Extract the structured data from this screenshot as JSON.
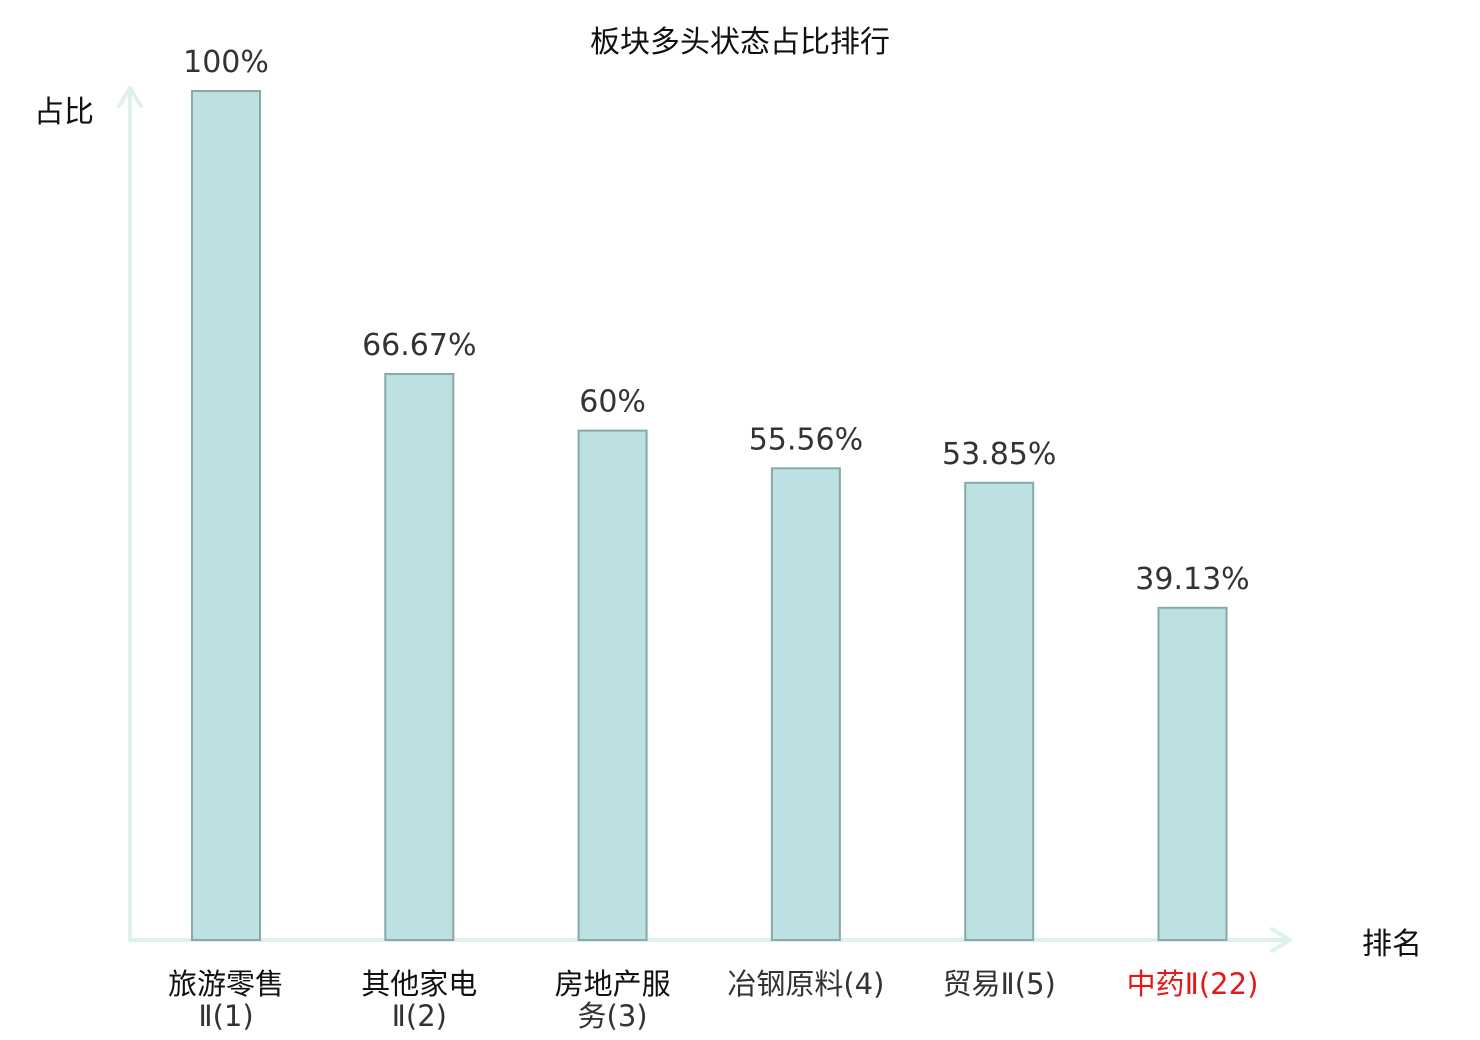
{
  "chart_data": {
    "type": "bar",
    "title": "板块多头状态占比排行",
    "ylabel": "占比",
    "xlabel": "排名",
    "ylim": [
      0,
      100
    ],
    "grid": false,
    "legend": "none",
    "categories": [
      {
        "name_lines": [
          "旅游零售"
        ],
        "rank_line": "Ⅱ(1)",
        "highlight": false
      },
      {
        "name_lines": [
          "其他家电"
        ],
        "rank_line": "Ⅱ(2)",
        "highlight": false
      },
      {
        "name_lines": [
          "房地产服"
        ],
        "rank_line": "务(3)",
        "highlight": false
      },
      {
        "name_lines": [],
        "rank_line": "冶钢原料(4)",
        "highlight": false
      },
      {
        "name_lines": [],
        "rank_line": "贸易Ⅱ(5)",
        "highlight": false
      },
      {
        "name_lines": [],
        "rank_line": "中药Ⅱ(22)",
        "highlight": true
      }
    ],
    "values": [
      100,
      66.67,
      60,
      55.56,
      53.85,
      39.13
    ],
    "value_labels": [
      "100%",
      "66.67%",
      "60%",
      "55.56%",
      "53.85%",
      "39.13%"
    ],
    "colors": {
      "bar_fill": "#bde0e3",
      "bar_stroke": "#86a9ab",
      "axis": "#dff1ef",
      "highlight_text": "#e01a1a",
      "value_text": "#333333"
    }
  }
}
